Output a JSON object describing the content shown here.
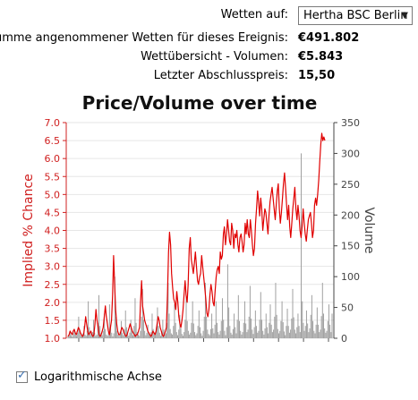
{
  "header": {
    "bets_on_label": "Wetten auf:",
    "selected_option": "Hertha BSC Berlin",
    "total_bets_label": "Summe angenommener Wetten für dieses Ereignis:",
    "total_bets_value": "€491.802",
    "volume_label": "Wettübersicht - Volumen:",
    "volume_value": "€5.843",
    "last_price_label": "Letzter Abschlusspreis:",
    "last_price_value": "15,50"
  },
  "chart_data": {
    "type": "line",
    "title": "Price/Volume over time",
    "left_axis_label": "Implied % Chance",
    "right_axis_label": "Volume",
    "left_ylim": [
      1.0,
      7.0
    ],
    "right_ylim": [
      0,
      350
    ],
    "left_ticks": [
      "1.0",
      "1.5",
      "2.0",
      "2.5",
      "3.0",
      "3.5",
      "4.0",
      "4.5",
      "5.0",
      "5.5",
      "6.0",
      "6.5",
      "7.0"
    ],
    "right_ticks": [
      "0",
      "50",
      "100",
      "150",
      "200",
      "250",
      "300",
      "350"
    ],
    "x_ticks": 11,
    "grid": true,
    "colors": {
      "price": "#e00000",
      "volume": "#a0a0a0",
      "left_axis": "#d02020",
      "right_axis": "#444444"
    },
    "series": [
      {
        "role": "price",
        "values": [
          1.05,
          1.1,
          1.2,
          1.15,
          1.1,
          1.2,
          1.25,
          1.15,
          1.1,
          1.2,
          1.3,
          1.25,
          1.15,
          1.1,
          1.05,
          1.1,
          1.3,
          1.6,
          1.4,
          1.2,
          1.1,
          1.15,
          1.2,
          1.1,
          1.05,
          1.1,
          1.4,
          1.8,
          1.5,
          1.3,
          1.1,
          1.05,
          1.1,
          1.2,
          1.3,
          1.6,
          1.9,
          1.6,
          1.4,
          1.2,
          1.1,
          1.3,
          1.5,
          2.2,
          3.3,
          2.5,
          1.8,
          1.4,
          1.2,
          1.1,
          1.1,
          1.2,
          1.3,
          1.25,
          1.15,
          1.1,
          1.05,
          1.1,
          1.2,
          1.3,
          1.4,
          1.3,
          1.2,
          1.15,
          1.1,
          1.05,
          1.1,
          1.1,
          1.2,
          1.3,
          2.0,
          2.6,
          1.9,
          1.7,
          1.5,
          1.4,
          1.3,
          1.2,
          1.15,
          1.1,
          1.05,
          1.1,
          1.2,
          1.15,
          1.1,
          1.2,
          1.4,
          1.6,
          1.5,
          1.3,
          1.2,
          1.1,
          1.05,
          1.1,
          1.2,
          1.3,
          2.2,
          3.4,
          3.95,
          3.6,
          2.8,
          2.4,
          2.1,
          2.0,
          1.8,
          2.3,
          2.0,
          1.6,
          1.4,
          1.3,
          1.5,
          1.8,
          2.2,
          2.6,
          2.2,
          2.0,
          2.5,
          3.5,
          3.8,
          3.2,
          3.0,
          2.8,
          3.1,
          3.4,
          3.0,
          2.6,
          2.5,
          2.7,
          2.8,
          3.3,
          3.0,
          2.7,
          2.4,
          2.1,
          1.7,
          1.6,
          1.8,
          2.2,
          2.5,
          2.3,
          2.0,
          1.9,
          2.3,
          2.7,
          2.9,
          3.0,
          2.8,
          3.4,
          3.2,
          3.3,
          3.9,
          4.1,
          3.6,
          3.9,
          4.3,
          4.0,
          3.7,
          3.6,
          4.2,
          4.0,
          3.5,
          3.9,
          3.8,
          4.0,
          3.6,
          3.4,
          3.8,
          3.9,
          3.7,
          3.4,
          3.6,
          4.2,
          3.9,
          4.3,
          3.9,
          3.8,
          4.3,
          4.0,
          3.6,
          3.3,
          3.5,
          4.2,
          4.6,
          5.1,
          4.8,
          4.4,
          4.9,
          4.6,
          4.0,
          4.3,
          4.6,
          4.5,
          4.2,
          3.9,
          4.4,
          4.8,
          5.0,
          5.2,
          4.9,
          4.6,
          4.3,
          4.7,
          5.1,
          5.3,
          4.6,
          4.2,
          4.5,
          4.9,
          5.3,
          5.6,
          5.2,
          4.7,
          4.3,
          4.7,
          4.1,
          3.8,
          4.2,
          4.6,
          4.9,
          5.2,
          4.6,
          4.3,
          4.7,
          4.4,
          4.0,
          3.8,
          4.1,
          4.6,
          4.2,
          3.9,
          3.7,
          4.0,
          4.3,
          4.4,
          4.5,
          4.2,
          3.8,
          4.0,
          4.7,
          4.9,
          4.7,
          5.0,
          5.4,
          5.9,
          6.4,
          6.7,
          6.5,
          6.6,
          6.5
        ]
      },
      {
        "role": "volume",
        "values": [
          4,
          6,
          10,
          5,
          3,
          8,
          15,
          7,
          4,
          9,
          35,
          12,
          5,
          3,
          8,
          20,
          6,
          4,
          12,
          60,
          18,
          8,
          5,
          10,
          30,
          9,
          4,
          6,
          25,
          70,
          20,
          8,
          5,
          12,
          40,
          15,
          6,
          4,
          10,
          55,
          22,
          9,
          3,
          8,
          100,
          35,
          12,
          6,
          4,
          10,
          28,
          9,
          5,
          15,
          45,
          18,
          7,
          4,
          9,
          30,
          12,
          5,
          20,
          65,
          25,
          10,
          6,
          4,
          12,
          35,
          80,
          30,
          12,
          5,
          9,
          22,
          8,
          4,
          10,
          40,
          15,
          6,
          5,
          18,
          50,
          20,
          9,
          4,
          12,
          30,
          14,
          6,
          8,
          25,
          90,
          40,
          15,
          8,
          6,
          20,
          55,
          25,
          10,
          5,
          14,
          38,
          16,
          7,
          4,
          10,
          30,
          70,
          28,
          12,
          6,
          9,
          25,
          60,
          24,
          10,
          5,
          8,
          20,
          45,
          18,
          8,
          4,
          12,
          35,
          90,
          35,
          14,
          7,
          5,
          15,
          40,
          16,
          8,
          22,
          60,
          25,
          10,
          6,
          12,
          28,
          65,
          30,
          12,
          5,
          18,
          120,
          50,
          20,
          9,
          6,
          15,
          40,
          18,
          8,
          30,
          70,
          28,
          12,
          6,
          10,
          25,
          60,
          24,
          10,
          14,
          35,
          85,
          32,
          14,
          7,
          18,
          45,
          20,
          9,
          12,
          30,
          75,
          30,
          12,
          6,
          16,
          40,
          18,
          8,
          25,
          55,
          22,
          10,
          14,
          35,
          90,
          38,
          15,
          8,
          12,
          28,
          60,
          26,
          11,
          5,
          20,
          48,
          20,
          9,
          14,
          32,
          80,
          34,
          14,
          8,
          18,
          40,
          20,
          10,
          300,
          60,
          25,
          12,
          20,
          45,
          24,
          10,
          16,
          38,
          70,
          28,
          12,
          8,
          22,
          50,
          22,
          10,
          14,
          36,
          90,
          40,
          16,
          9,
          12,
          28,
          55,
          22,
          10,
          40
        ]
      }
    ]
  },
  "footer": {
    "log_axis_label": "Logarithmische Achse",
    "log_axis_checked": true
  }
}
